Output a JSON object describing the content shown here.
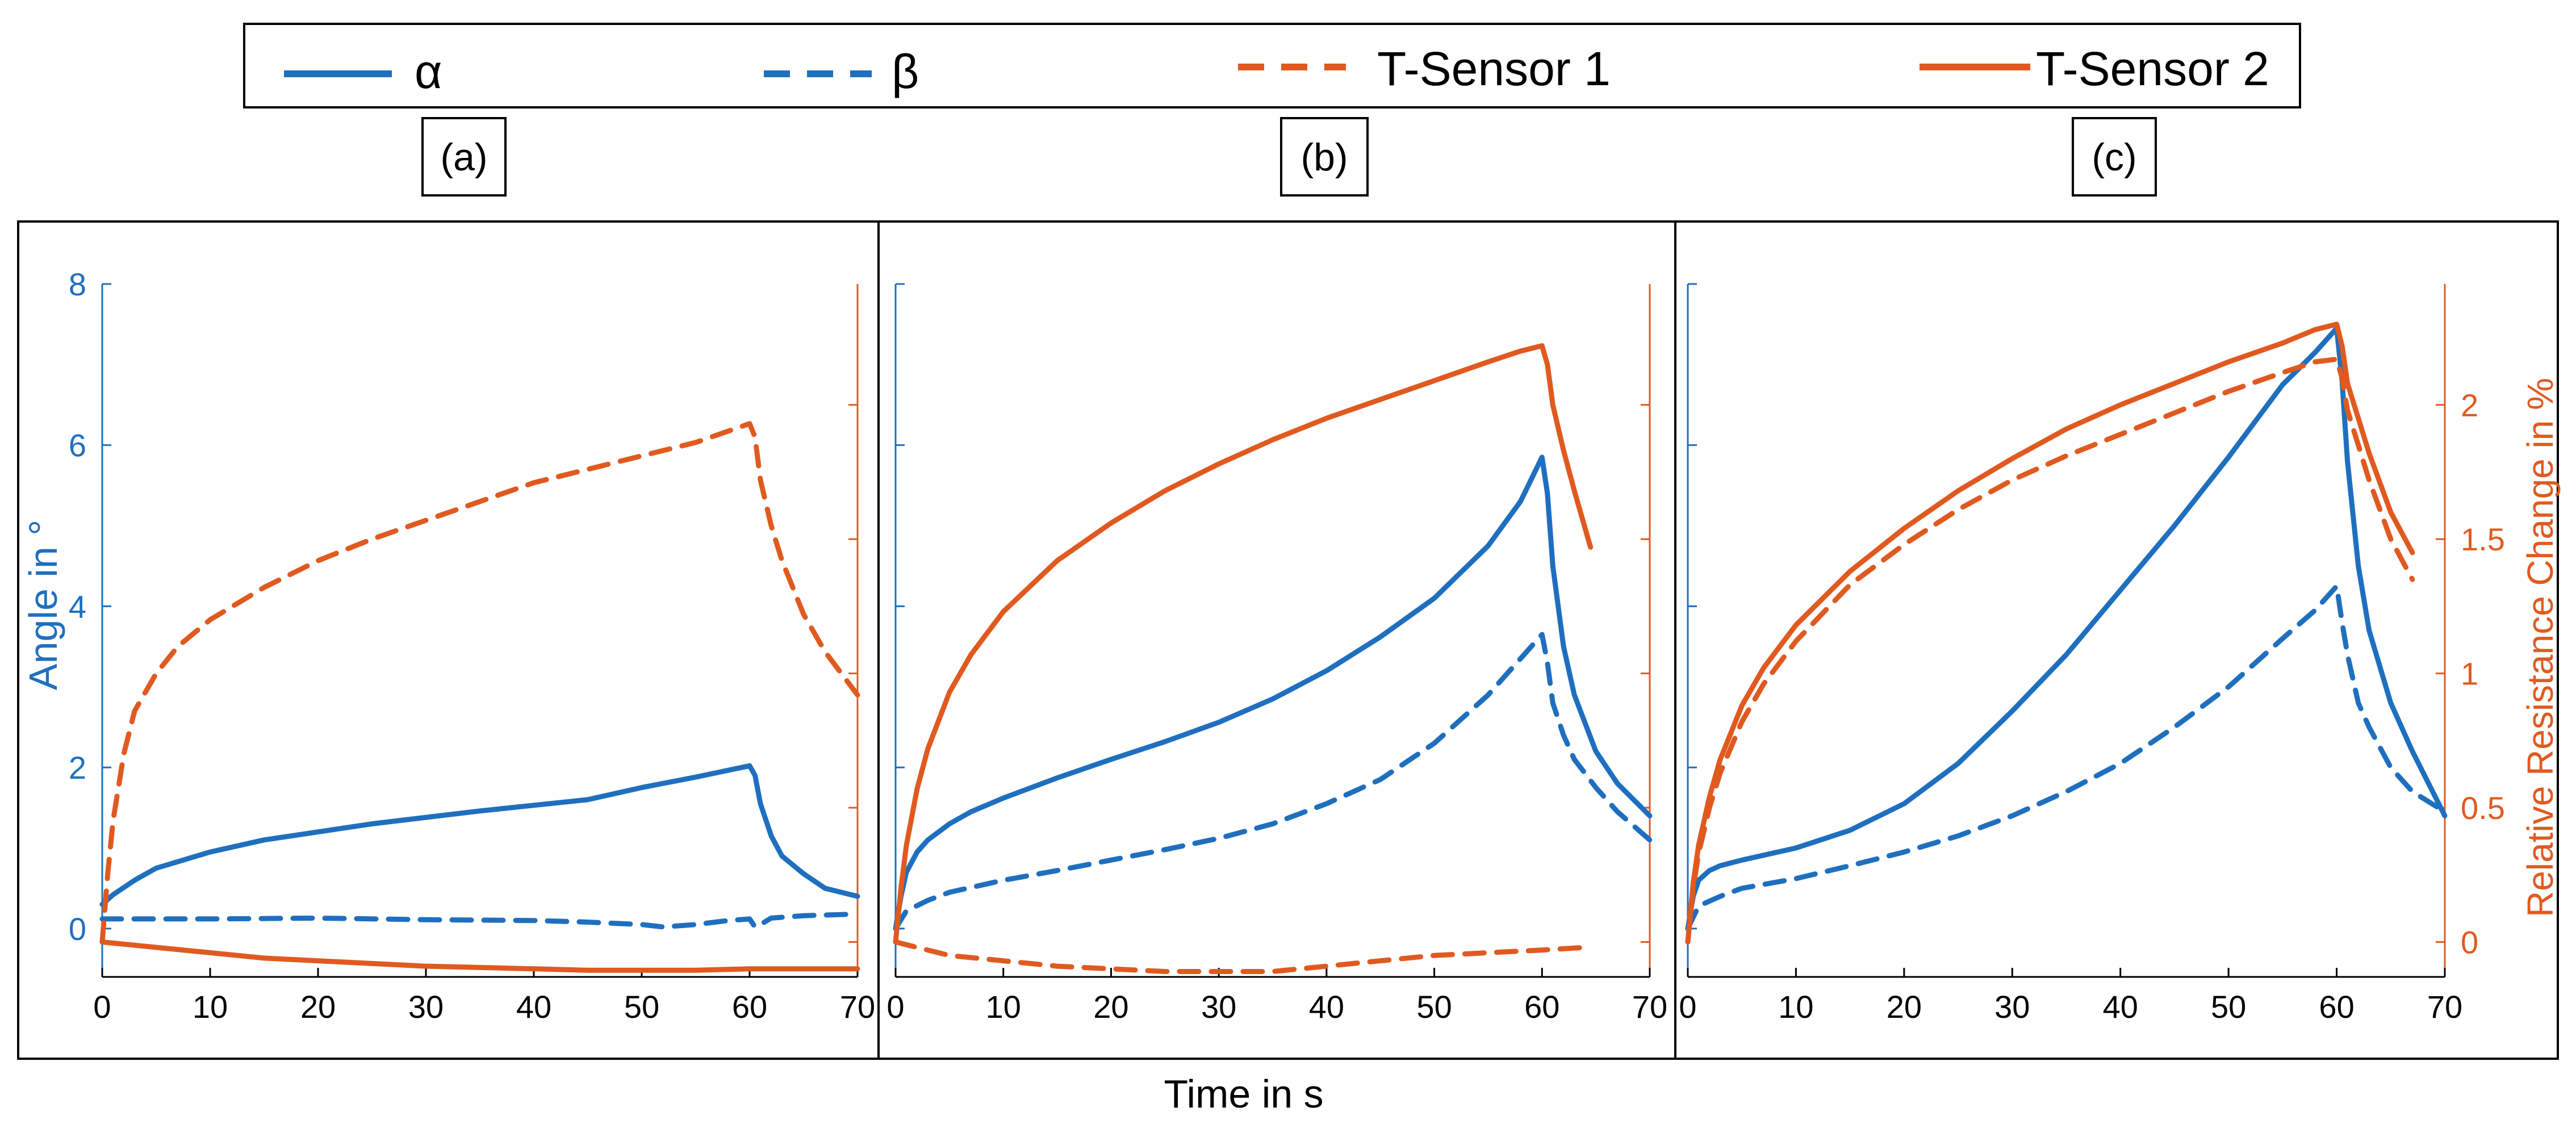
{
  "legend": {
    "entries": [
      {
        "label": "α",
        "color": "#1f6fbf",
        "style": "solid"
      },
      {
        "label": "β",
        "color": "#1f6fbf",
        "style": "dashed"
      },
      {
        "label": "T-Sensor 1",
        "color": "#e05a20",
        "style": "dashed"
      },
      {
        "label": "T-Sensor 2",
        "color": "#e05a20",
        "style": "solid"
      }
    ]
  },
  "panel_labels": [
    "(a)",
    "(b)",
    "(c)"
  ],
  "colors": {
    "angle": "#1f6fbf",
    "resistance": "#e05a20",
    "frame": "#000000"
  },
  "shared_xlabel": "Time in s",
  "chart_data": [
    {
      "type": "line",
      "panel": "(a)",
      "xlim": [
        0,
        70
      ],
      "xticks": [
        0,
        10,
        20,
        30,
        40,
        50,
        60,
        70
      ],
      "ylabel_left": "Angle in °",
      "ylim_left": [
        -0.6,
        8
      ],
      "yticks_left": [
        0,
        2,
        4,
        6,
        8
      ],
      "ylim_right": [
        -0.13,
        2.45
      ],
      "series": [
        {
          "name": "α",
          "axis": "left",
          "style": "solid",
          "x": [
            0,
            1,
            3,
            5,
            10,
            15,
            20,
            25,
            30,
            35,
            40,
            45,
            50,
            55,
            60,
            60.5,
            61,
            62,
            63,
            65,
            67,
            70
          ],
          "y": [
            0.3,
            0.42,
            0.6,
            0.75,
            0.95,
            1.1,
            1.2,
            1.3,
            1.38,
            1.46,
            1.53,
            1.6,
            1.75,
            1.88,
            2.02,
            1.9,
            1.55,
            1.15,
            0.9,
            0.68,
            0.5,
            0.4
          ]
        },
        {
          "name": "β",
          "axis": "left",
          "style": "dashed",
          "x": [
            0,
            5,
            10,
            20,
            30,
            40,
            45,
            50,
            52,
            55,
            58,
            60,
            60.5,
            61,
            62,
            65,
            70
          ],
          "y": [
            0.12,
            0.12,
            0.12,
            0.13,
            0.11,
            0.1,
            0.08,
            0.05,
            0.02,
            0.05,
            0.1,
            0.12,
            0.02,
            0.05,
            0.13,
            0.16,
            0.18
          ]
        },
        {
          "name": "T-Sensor 1",
          "axis": "right",
          "style": "dashed",
          "x": [
            0,
            0.5,
            1,
            2,
            3,
            5,
            7,
            10,
            15,
            20,
            25,
            30,
            35,
            40,
            45,
            50,
            55,
            60,
            60.5,
            61,
            62,
            63,
            65,
            67,
            70
          ],
          "y": [
            0.0,
            0.25,
            0.45,
            0.7,
            0.86,
            1.0,
            1.1,
            1.2,
            1.32,
            1.42,
            1.5,
            1.57,
            1.64,
            1.71,
            1.76,
            1.81,
            1.86,
            1.93,
            1.88,
            1.72,
            1.55,
            1.42,
            1.22,
            1.08,
            0.92
          ]
        },
        {
          "name": "T-Sensor 2",
          "axis": "right",
          "style": "solid",
          "x": [
            0,
            5,
            10,
            15,
            20,
            25,
            30,
            35,
            40,
            45,
            50,
            55,
            60,
            65,
            70
          ],
          "y": [
            0.0,
            -0.02,
            -0.04,
            -0.06,
            -0.07,
            -0.08,
            -0.09,
            -0.095,
            -0.1,
            -0.105,
            -0.105,
            -0.105,
            -0.1,
            -0.1,
            -0.1
          ]
        }
      ]
    },
    {
      "type": "line",
      "panel": "(b)",
      "xlim": [
        0,
        70
      ],
      "xticks": [
        0,
        10,
        20,
        30,
        40,
        50,
        60,
        70
      ],
      "ylim_left": [
        -0.6,
        8
      ],
      "ylim_right": [
        -0.13,
        2.45
      ],
      "series": [
        {
          "name": "α",
          "axis": "left",
          "style": "solid",
          "x": [
            0,
            0.5,
            1,
            2,
            3,
            5,
            7,
            10,
            15,
            20,
            25,
            30,
            35,
            40,
            45,
            50,
            55,
            58,
            60,
            60.5,
            61,
            62,
            63,
            65,
            67,
            70
          ],
          "y": [
            0.0,
            0.4,
            0.7,
            0.95,
            1.1,
            1.3,
            1.45,
            1.62,
            1.87,
            2.1,
            2.32,
            2.56,
            2.85,
            3.2,
            3.62,
            4.1,
            4.75,
            5.3,
            5.85,
            5.4,
            4.5,
            3.5,
            2.9,
            2.2,
            1.8,
            1.4
          ]
        },
        {
          "name": "β",
          "axis": "left",
          "style": "dashed",
          "x": [
            0,
            1,
            3,
            5,
            10,
            15,
            20,
            25,
            30,
            35,
            40,
            45,
            50,
            55,
            58,
            60,
            60.5,
            61,
            62,
            63,
            65,
            67,
            70
          ],
          "y": [
            0.0,
            0.22,
            0.35,
            0.45,
            0.6,
            0.72,
            0.85,
            0.98,
            1.12,
            1.3,
            1.55,
            1.85,
            2.3,
            2.9,
            3.35,
            3.65,
            3.3,
            2.8,
            2.4,
            2.1,
            1.75,
            1.45,
            1.1
          ]
        },
        {
          "name": "T-Sensor 1",
          "axis": "right",
          "style": "dashed",
          "x": [
            0,
            2,
            5,
            10,
            15,
            20,
            25,
            30,
            35,
            40,
            45,
            50,
            55,
            60,
            64
          ],
          "y": [
            0.0,
            -0.02,
            -0.05,
            -0.07,
            -0.09,
            -0.1,
            -0.11,
            -0.11,
            -0.11,
            -0.09,
            -0.07,
            -0.05,
            -0.04,
            -0.03,
            -0.02
          ]
        },
        {
          "name": "T-Sensor 2",
          "axis": "right",
          "style": "solid",
          "x": [
            0,
            0.5,
            1,
            2,
            3,
            5,
            7,
            10,
            15,
            20,
            25,
            30,
            35,
            40,
            45,
            50,
            55,
            58,
            60,
            60.5,
            61,
            62,
            63,
            64.5
          ],
          "y": [
            0.0,
            0.2,
            0.36,
            0.57,
            0.72,
            0.93,
            1.07,
            1.23,
            1.42,
            1.56,
            1.68,
            1.78,
            1.87,
            1.95,
            2.02,
            2.09,
            2.16,
            2.2,
            2.22,
            2.15,
            2.0,
            1.83,
            1.68,
            1.47
          ]
        }
      ]
    },
    {
      "type": "line",
      "panel": "(c)",
      "xlim": [
        0,
        70
      ],
      "xticks": [
        0,
        10,
        20,
        30,
        40,
        50,
        60,
        70
      ],
      "ylim_left": [
        -0.6,
        8
      ],
      "ylabel_right": "Relative Resistance Change in %",
      "ylim_right": [
        -0.13,
        2.45
      ],
      "yticks_right": [
        0,
        0.5,
        1,
        1.5,
        2
      ],
      "series": [
        {
          "name": "α",
          "axis": "left",
          "style": "solid",
          "x": [
            0,
            0.5,
            1,
            2,
            3,
            5,
            10,
            15,
            20,
            25,
            30,
            35,
            40,
            45,
            50,
            55,
            58,
            60,
            60.5,
            61,
            62,
            63,
            65,
            67,
            70
          ],
          "y": [
            0.0,
            0.4,
            0.6,
            0.72,
            0.78,
            0.85,
            1.0,
            1.22,
            1.55,
            2.05,
            2.7,
            3.4,
            4.2,
            5.0,
            5.85,
            6.75,
            7.15,
            7.45,
            6.8,
            5.8,
            4.5,
            3.7,
            2.8,
            2.2,
            1.4
          ]
        },
        {
          "name": "β",
          "axis": "left",
          "style": "dashed",
          "x": [
            0,
            1,
            3,
            5,
            10,
            15,
            20,
            25,
            30,
            35,
            40,
            45,
            50,
            55,
            58,
            60,
            60.5,
            61,
            62,
            63,
            65,
            67,
            70
          ],
          "y": [
            0.0,
            0.28,
            0.4,
            0.5,
            0.62,
            0.78,
            0.95,
            1.15,
            1.4,
            1.7,
            2.05,
            2.5,
            3.0,
            3.6,
            3.95,
            4.25,
            3.8,
            3.4,
            2.8,
            2.5,
            2.0,
            1.7,
            1.45
          ]
        },
        {
          "name": "T-Sensor 1",
          "axis": "right",
          "style": "dashed",
          "x": [
            0,
            0.5,
            1,
            2,
            3,
            5,
            7,
            10,
            15,
            20,
            25,
            30,
            35,
            40,
            45,
            50,
            55,
            58,
            60,
            60.5,
            61,
            62,
            63,
            65,
            67
          ],
          "y": [
            0.0,
            0.2,
            0.33,
            0.5,
            0.63,
            0.82,
            0.96,
            1.12,
            1.33,
            1.48,
            1.61,
            1.72,
            1.81,
            1.89,
            1.97,
            2.05,
            2.12,
            2.16,
            2.17,
            2.1,
            1.98,
            1.85,
            1.72,
            1.5,
            1.35
          ]
        },
        {
          "name": "T-Sensor 2",
          "axis": "right",
          "style": "solid",
          "x": [
            0,
            0.5,
            1,
            2,
            3,
            5,
            7,
            10,
            15,
            20,
            25,
            30,
            35,
            40,
            45,
            50,
            55,
            58,
            60,
            60.5,
            61,
            62,
            63,
            65,
            67
          ],
          "y": [
            0.0,
            0.22,
            0.36,
            0.54,
            0.68,
            0.88,
            1.02,
            1.18,
            1.38,
            1.54,
            1.68,
            1.8,
            1.91,
            2.0,
            2.08,
            2.16,
            2.23,
            2.28,
            2.3,
            2.22,
            2.08,
            1.95,
            1.82,
            1.6,
            1.45
          ]
        }
      ]
    }
  ]
}
